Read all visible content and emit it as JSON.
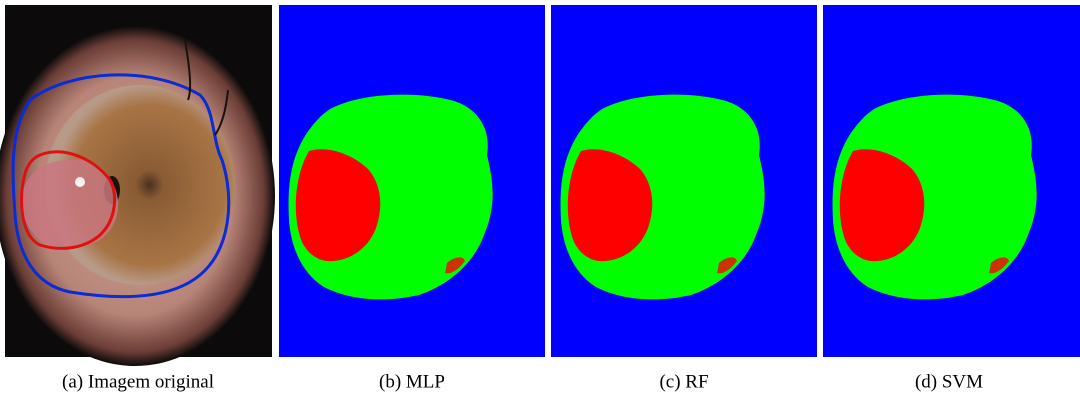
{
  "figure": {
    "captions": [
      "(a)  Imagem original",
      "(b)  MLP",
      "(c)  RF",
      "(d)  SVM"
    ]
  }
}
